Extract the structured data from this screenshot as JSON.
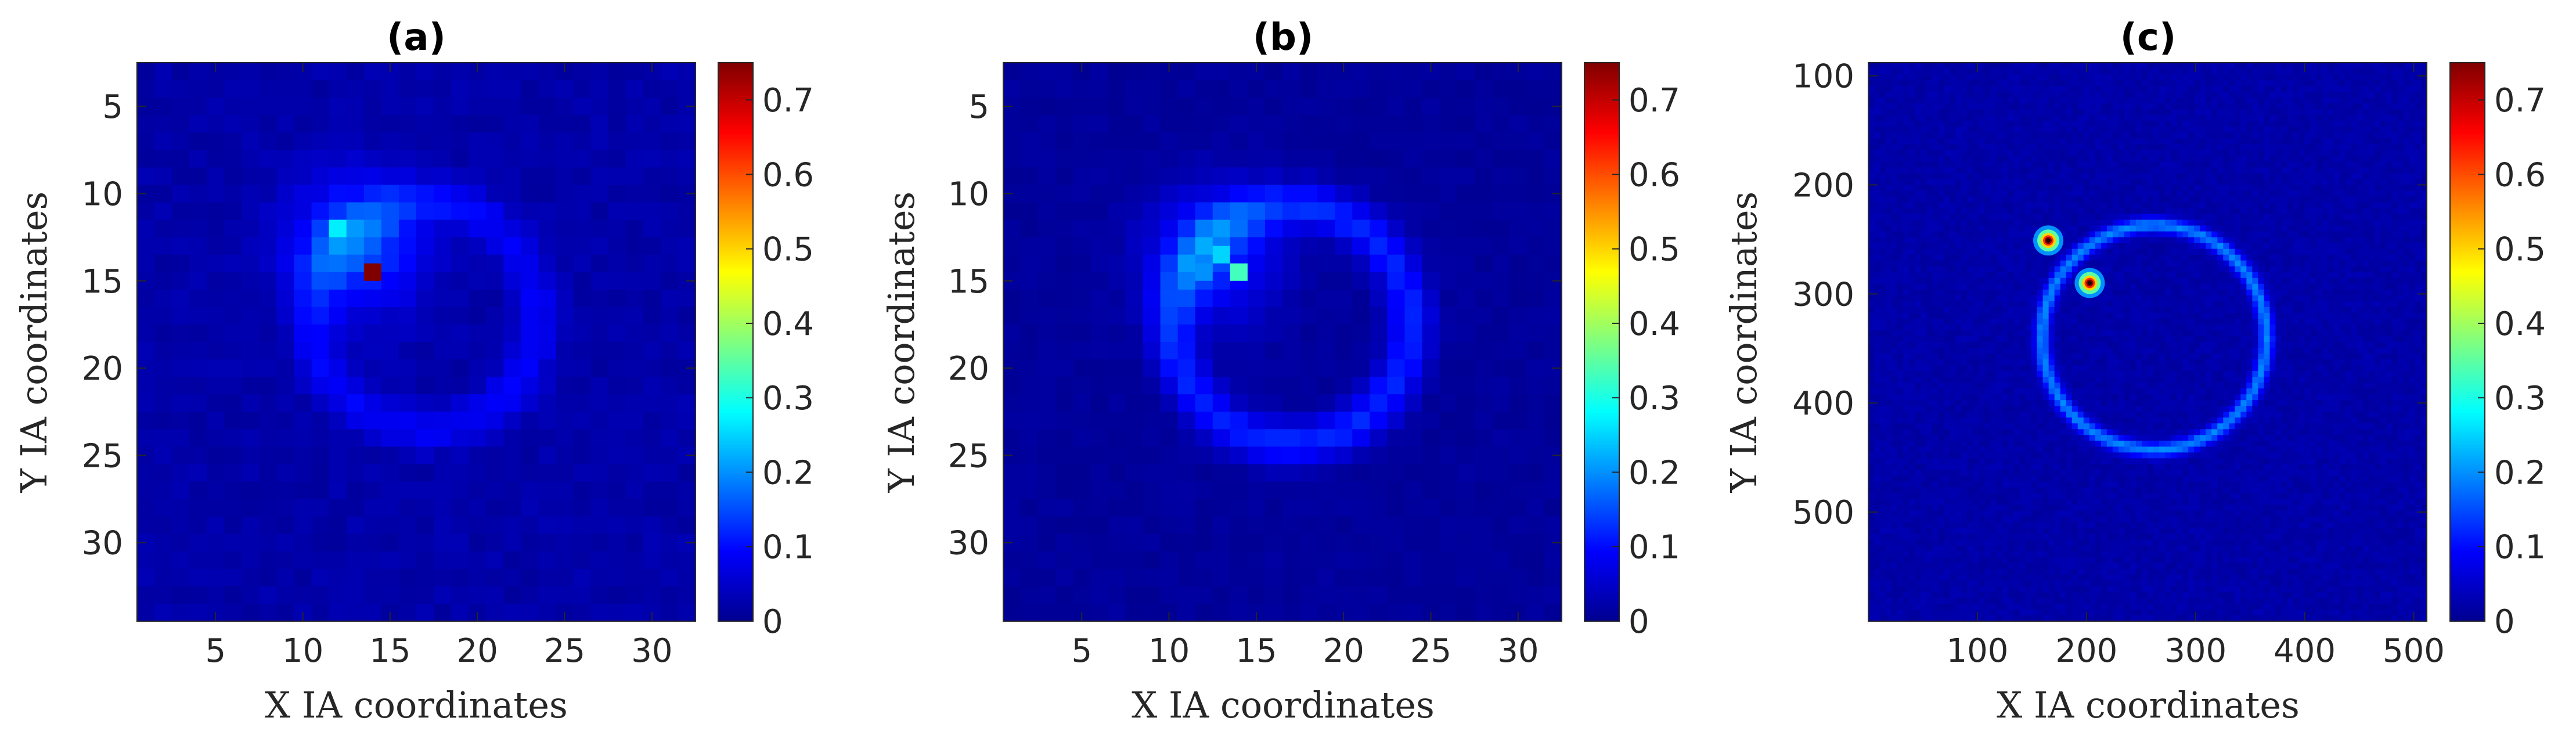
{
  "chart_data": [
    {
      "type": "heatmap",
      "title": "(a)",
      "xlabel": "X IA coordinates",
      "ylabel": "Y IA coordinates",
      "grid_size": [
        32,
        32
      ],
      "xlim": [
        0.5,
        32.5
      ],
      "ylim": [
        2.5,
        34.5
      ],
      "xticks": [
        5,
        10,
        15,
        20,
        25,
        30
      ],
      "yticks": [
        5,
        10,
        15,
        20,
        25,
        30
      ],
      "colorbar": {
        "colormap": "jet",
        "range": [
          0,
          0.75
        ],
        "ticks": [
          0,
          0.1,
          0.2,
          0.3,
          0.4,
          0.5,
          0.6,
          0.7
        ]
      },
      "features": {
        "peaks": [
          {
            "x": 12,
            "y": 12,
            "value": 0.27
          },
          {
            "x": 14,
            "y": 14.5,
            "value": 0.75
          }
        ],
        "ring": {
          "cx": 17,
          "cy": 17,
          "r": 6.5,
          "value": 0.06
        },
        "cluster": {
          "cx": 13,
          "cy": 13,
          "value": 0.12
        },
        "background": 0.03
      }
    },
    {
      "type": "heatmap",
      "title": "(b)",
      "xlabel": "X IA coordinates",
      "ylabel": "Y IA coordinates",
      "grid_size": [
        32,
        32
      ],
      "xlim": [
        0.5,
        32.5
      ],
      "ylim": [
        2.5,
        34.5
      ],
      "xticks": [
        5,
        10,
        15,
        20,
        25,
        30
      ],
      "yticks": [
        5,
        10,
        15,
        20,
        25,
        30
      ],
      "colorbar": {
        "colormap": "jet",
        "range": [
          0,
          0.75
        ],
        "ticks": [
          0,
          0.1,
          0.2,
          0.3,
          0.4,
          0.5,
          0.6,
          0.7
        ]
      },
      "features": {
        "peaks": [
          {
            "x": 13,
            "y": 13.5,
            "value": 0.25
          },
          {
            "x": 14,
            "y": 14.5,
            "value": 0.33
          },
          {
            "x": 12,
            "y": 14.5,
            "value": 0.2
          }
        ],
        "ring": {
          "cx": 17,
          "cy": 17.5,
          "r": 6.8,
          "value": 0.1
        },
        "cluster": {
          "cx": 12.5,
          "cy": 13.5,
          "value": 0.1
        },
        "background": 0.02
      }
    },
    {
      "type": "heatmap",
      "title": "(c)",
      "xlabel": "X IA coordinates",
      "ylabel": "Y IA coordinates",
      "grid_size": [
        512,
        512
      ],
      "xlim": [
        0,
        512
      ],
      "ylim": [
        88,
        600
      ],
      "xticks": [
        100,
        200,
        300,
        400,
        500
      ],
      "yticks": [
        100,
        200,
        300,
        400,
        500
      ],
      "colorbar": {
        "colormap": "jet",
        "range": [
          0,
          0.75
        ],
        "ticks": [
          0,
          0.1,
          0.2,
          0.3,
          0.4,
          0.5,
          0.6,
          0.7
        ]
      },
      "features": {
        "peaks": [
          {
            "x": 165,
            "y": 251,
            "value": 0.75
          },
          {
            "x": 203,
            "y": 290,
            "value": 0.75
          }
        ],
        "ring": {
          "cx": 262,
          "cy": 340,
          "r": 103,
          "value": 0.16
        },
        "background": 0.03
      }
    }
  ]
}
